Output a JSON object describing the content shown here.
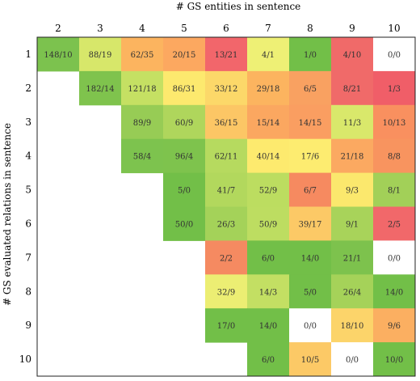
{
  "chart_data": {
    "type": "heatmap",
    "title": "",
    "xlabel": "# GS entities in sentence",
    "ylabel": "# GS evaluated relations in sentence",
    "x_categories": [
      "2",
      "3",
      "4",
      "5",
      "6",
      "7",
      "8",
      "9",
      "10"
    ],
    "y_categories": [
      "1",
      "2",
      "3",
      "4",
      "5",
      "6",
      "7",
      "8",
      "9",
      "10"
    ],
    "cells": [
      {
        "row": "1",
        "col": "2",
        "label": "148/10",
        "color": "#7cc24e"
      },
      {
        "row": "1",
        "col": "3",
        "label": "88/19",
        "color": "#d7e76a"
      },
      {
        "row": "1",
        "col": "4",
        "label": "62/35",
        "color": "#fcb45f"
      },
      {
        "row": "1",
        "col": "5",
        "label": "20/15",
        "color": "#fca860"
      },
      {
        "row": "1",
        "col": "6",
        "label": "13/21",
        "color": "#f2666b"
      },
      {
        "row": "1",
        "col": "7",
        "label": "4/1",
        "color": "#eef075"
      },
      {
        "row": "1",
        "col": "8",
        "label": "1/0",
        "color": "#72bf48"
      },
      {
        "row": "1",
        "col": "9",
        "label": "4/10",
        "color": "#f06a69"
      },
      {
        "row": "1",
        "col": "10",
        "label": "0/0",
        "color": "#ffffff"
      },
      {
        "row": "2",
        "col": "3",
        "label": "182/14",
        "color": "#7fc34d"
      },
      {
        "row": "2",
        "col": "4",
        "label": "121/18",
        "color": "#c5e063"
      },
      {
        "row": "2",
        "col": "5",
        "label": "86/31",
        "color": "#fde96e"
      },
      {
        "row": "2",
        "col": "6",
        "label": "33/12",
        "color": "#fcd869"
      },
      {
        "row": "2",
        "col": "7",
        "label": "29/18",
        "color": "#fcb45f"
      },
      {
        "row": "2",
        "col": "8",
        "label": "6/5",
        "color": "#f9a161"
      },
      {
        "row": "2",
        "col": "9",
        "label": "8/21",
        "color": "#f06a69"
      },
      {
        "row": "2",
        "col": "10",
        "label": "1/3",
        "color": "#f05e68"
      },
      {
        "row": "3",
        "col": "4",
        "label": "89/9",
        "color": "#97cc55"
      },
      {
        "row": "3",
        "col": "5",
        "label": "60/9",
        "color": "#afd65c"
      },
      {
        "row": "3",
        "col": "6",
        "label": "36/15",
        "color": "#fcc665"
      },
      {
        "row": "3",
        "col": "7",
        "label": "15/14",
        "color": "#fba760"
      },
      {
        "row": "3",
        "col": "8",
        "label": "14/15",
        "color": "#fa9e61"
      },
      {
        "row": "3",
        "col": "9",
        "label": "11/3",
        "color": "#d9e86b"
      },
      {
        "row": "3",
        "col": "10",
        "label": "10/13",
        "color": "#f9905f"
      },
      {
        "row": "4",
        "col": "4",
        "label": "58/4",
        "color": "#7dc34e"
      },
      {
        "row": "4",
        "col": "5",
        "label": "96/4",
        "color": "#7ec34d"
      },
      {
        "row": "4",
        "col": "6",
        "label": "62/11",
        "color": "#b6da5f"
      },
      {
        "row": "4",
        "col": "7",
        "label": "40/14",
        "color": "#fdea6e"
      },
      {
        "row": "4",
        "col": "8",
        "label": "17/6",
        "color": "#fdec70"
      },
      {
        "row": "4",
        "col": "9",
        "label": "21/18",
        "color": "#fba961"
      },
      {
        "row": "4",
        "col": "10",
        "label": "8/8",
        "color": "#f8945f"
      },
      {
        "row": "5",
        "col": "5",
        "label": "5/0",
        "color": "#72bf48"
      },
      {
        "row": "5",
        "col": "6",
        "label": "41/7",
        "color": "#b2d85d"
      },
      {
        "row": "5",
        "col": "7",
        "label": "52/9",
        "color": "#bcdd60"
      },
      {
        "row": "5",
        "col": "8",
        "label": "6/7",
        "color": "#f68a60"
      },
      {
        "row": "5",
        "col": "9",
        "label": "9/3",
        "color": "#fbe86d"
      },
      {
        "row": "5",
        "col": "10",
        "label": "8/1",
        "color": "#a2d058"
      },
      {
        "row": "6",
        "col": "5",
        "label": "50/0",
        "color": "#72bf48"
      },
      {
        "row": "6",
        "col": "6",
        "label": "26/3",
        "color": "#a4d259"
      },
      {
        "row": "6",
        "col": "7",
        "label": "50/9",
        "color": "#bddd61"
      },
      {
        "row": "6",
        "col": "8",
        "label": "39/17",
        "color": "#fcc966"
      },
      {
        "row": "6",
        "col": "9",
        "label": "9/1",
        "color": "#a8d35a"
      },
      {
        "row": "6",
        "col": "10",
        "label": "2/5",
        "color": "#f1686a"
      },
      {
        "row": "7",
        "col": "6",
        "label": "2/2",
        "color": "#f58a61"
      },
      {
        "row": "7",
        "col": "7",
        "label": "6/0",
        "color": "#72bf48"
      },
      {
        "row": "7",
        "col": "8",
        "label": "14/0",
        "color": "#72bf48"
      },
      {
        "row": "7",
        "col": "9",
        "label": "21/1",
        "color": "#7dc24d"
      },
      {
        "row": "7",
        "col": "10",
        "label": "0/0",
        "color": "#ffffff"
      },
      {
        "row": "8",
        "col": "6",
        "label": "32/9",
        "color": "#ecee73"
      },
      {
        "row": "8",
        "col": "7",
        "label": "14/3",
        "color": "#c3df63"
      },
      {
        "row": "8",
        "col": "8",
        "label": "5/0",
        "color": "#72bf48"
      },
      {
        "row": "8",
        "col": "9",
        "label": "26/4",
        "color": "#a5d259"
      },
      {
        "row": "8",
        "col": "10",
        "label": "14/0",
        "color": "#72bf48"
      },
      {
        "row": "9",
        "col": "6",
        "label": "17/0",
        "color": "#72bf48"
      },
      {
        "row": "9",
        "col": "7",
        "label": "14/0",
        "color": "#72bf48"
      },
      {
        "row": "9",
        "col": "8",
        "label": "0/0",
        "color": "#ffffff"
      },
      {
        "row": "9",
        "col": "9",
        "label": "18/10",
        "color": "#fcd46a"
      },
      {
        "row": "9",
        "col": "10",
        "label": "9/6",
        "color": "#fbaf61"
      },
      {
        "row": "10",
        "col": "7",
        "label": "6/0",
        "color": "#72bf48"
      },
      {
        "row": "10",
        "col": "8",
        "label": "10/5",
        "color": "#fcc966"
      },
      {
        "row": "10",
        "col": "9",
        "label": "0/0",
        "color": "#ffffff"
      },
      {
        "row": "10",
        "col": "10",
        "label": "10/0",
        "color": "#72bf48"
      }
    ]
  }
}
